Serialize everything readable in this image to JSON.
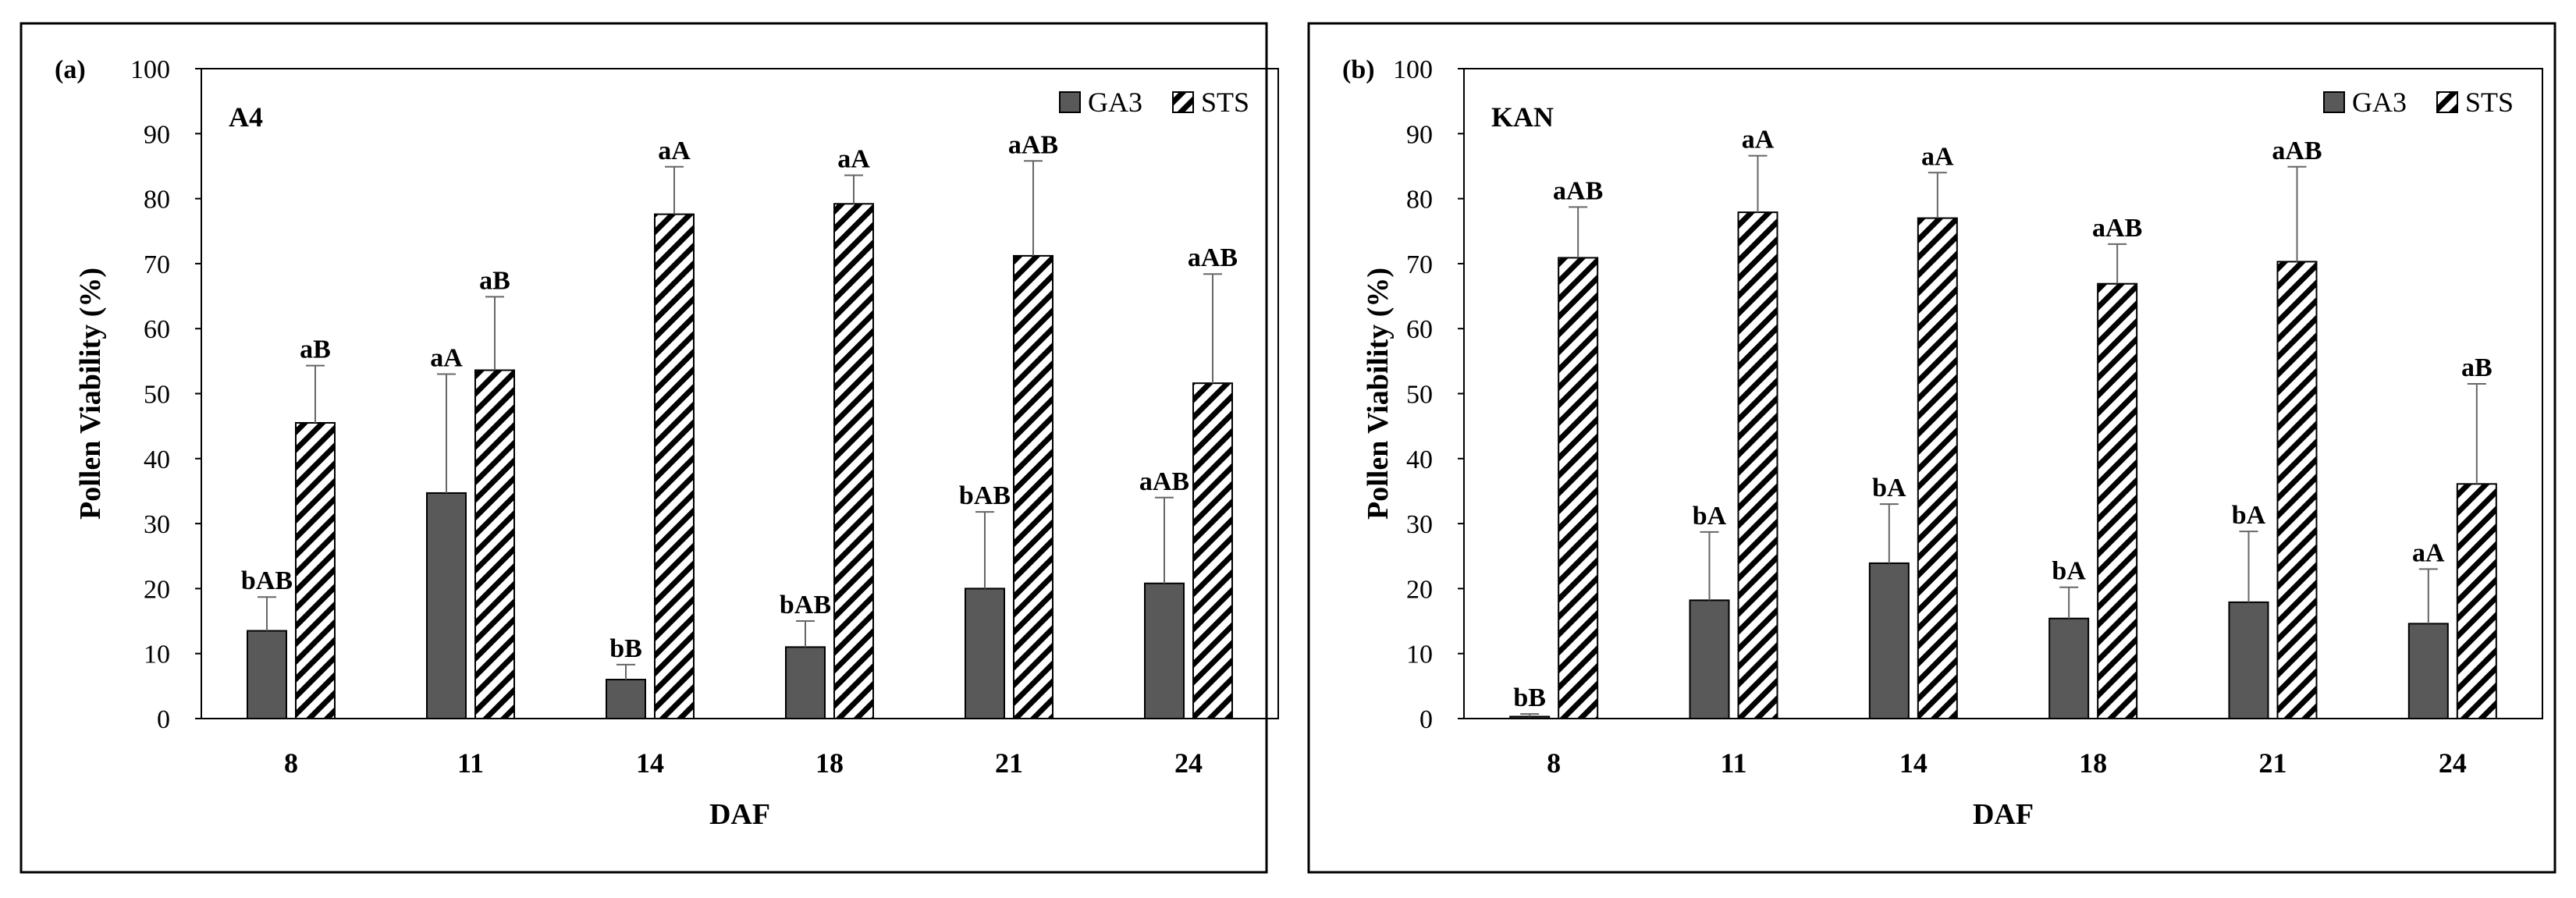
{
  "colors": {
    "ga3_fill": "#595959",
    "sts_fill": "#ffffff",
    "stroke": "#000000",
    "axis": "#000000",
    "errorbar": "#666666",
    "text": "#000000"
  },
  "chart_data": [
    {
      "type": "bar",
      "panel_label": "(a)",
      "title": "A4",
      "xlabel": "DAF",
      "ylabel": "Pollen Viability (%)",
      "ylim": [
        0,
        100
      ],
      "yticks": [
        0,
        10,
        20,
        30,
        40,
        50,
        60,
        70,
        80,
        90,
        100
      ],
      "categories": [
        "8",
        "11",
        "14",
        "18",
        "21",
        "24"
      ],
      "legend_position": "top-right",
      "grid": false,
      "series": [
        {
          "name": "GA3",
          "pattern": "solid",
          "values": [
            13.5,
            34.7,
            6.0,
            11.0,
            20.0,
            20.8
          ],
          "errors": [
            5.2,
            18.3,
            2.3,
            4.0,
            11.8,
            13.2
          ],
          "letters": [
            "bAB",
            "aA",
            "bB",
            "bAB",
            "bAB",
            "aAB"
          ]
        },
        {
          "name": "STS",
          "pattern": "hatch",
          "values": [
            45.5,
            53.6,
            77.6,
            79.2,
            71.2,
            51.6
          ],
          "errors": [
            8.8,
            11.3,
            7.3,
            4.4,
            14.6,
            16.8
          ],
          "letters": [
            "aB",
            "aB",
            "aA",
            "aA",
            "aAB",
            "aAB"
          ]
        }
      ]
    },
    {
      "type": "bar",
      "panel_label": "(b)",
      "title": "KAN",
      "xlabel": "DAF",
      "ylabel": "Pollen Viability (%)",
      "ylim": [
        0,
        100
      ],
      "yticks": [
        0,
        10,
        20,
        30,
        40,
        50,
        60,
        70,
        80,
        90,
        100
      ],
      "categories": [
        "8",
        "11",
        "14",
        "18",
        "21",
        "24"
      ],
      "legend_position": "top-right",
      "grid": false,
      "series": [
        {
          "name": "GA3",
          "pattern": "solid",
          "values": [
            0.3,
            18.2,
            23.9,
            15.4,
            17.9,
            14.6
          ],
          "errors": [
            0.4,
            10.5,
            9.1,
            4.8,
            10.9,
            8.4
          ],
          "letters": [
            "bB",
            "bA",
            "bA",
            "bA",
            "bA",
            "aA"
          ]
        },
        {
          "name": "STS",
          "pattern": "hatch",
          "values": [
            70.9,
            77.9,
            77.0,
            66.9,
            70.3,
            36.1
          ],
          "errors": [
            7.8,
            8.7,
            7.0,
            6.1,
            14.6,
            15.4
          ],
          "letters": [
            "aAB",
            "aA",
            "aA",
            "aAB",
            "aAB",
            "aB"
          ]
        }
      ]
    }
  ]
}
